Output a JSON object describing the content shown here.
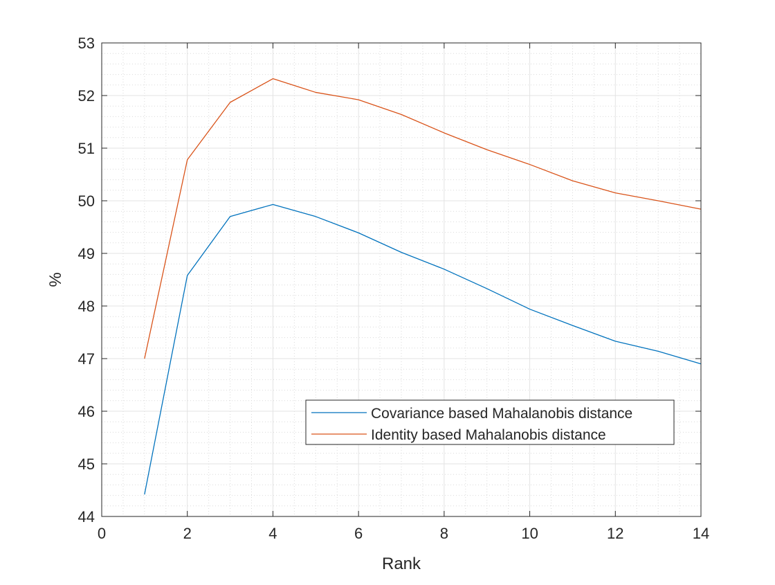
{
  "chart_data": {
    "type": "line",
    "title": "",
    "xlabel": "Rank",
    "ylabel": "%",
    "xlim": [
      0,
      14
    ],
    "ylim": [
      44,
      53
    ],
    "xticks": [
      0,
      2,
      4,
      6,
      8,
      10,
      12,
      14
    ],
    "yticks": [
      44,
      45,
      46,
      47,
      48,
      49,
      50,
      51,
      52,
      53
    ],
    "grid": true,
    "minor_grid": true,
    "legend_position": "lower-right",
    "x": [
      1,
      2,
      3,
      4,
      5,
      6,
      7,
      8,
      9,
      10,
      11,
      12,
      13,
      14
    ],
    "series": [
      {
        "name": "Covariance based Mahalanobis distance",
        "color": "#0072BD",
        "values": [
          44.42,
          48.58,
          49.7,
          49.93,
          49.7,
          49.39,
          49.02,
          48.7,
          48.33,
          47.94,
          47.63,
          47.33,
          47.14,
          46.9
        ]
      },
      {
        "name": "Identity based Mahalanobis distance",
        "color": "#D95319",
        "values": [
          47.0,
          50.78,
          51.87,
          52.32,
          52.06,
          51.92,
          51.64,
          51.29,
          50.97,
          50.69,
          50.38,
          50.15,
          50.0,
          49.84
        ]
      }
    ]
  }
}
